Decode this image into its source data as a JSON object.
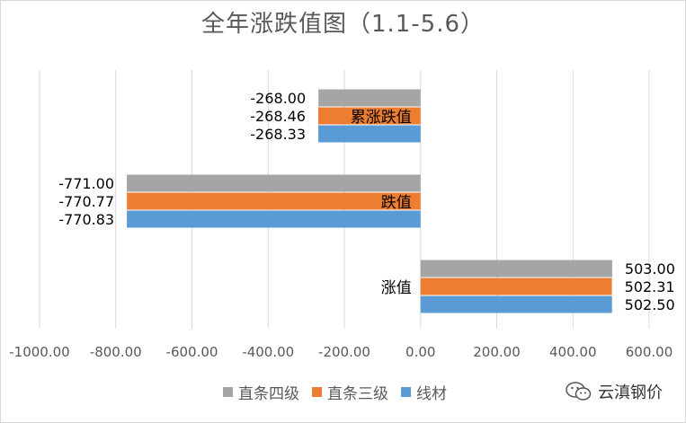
{
  "chart_data": {
    "type": "bar",
    "orientation": "horizontal",
    "title": "全年涨跌值图（1.1-5.6）",
    "categories": [
      "涨值",
      "跌值",
      "累涨跌值"
    ],
    "series": [
      {
        "name": "线材",
        "color": "#5b9bd5",
        "values": [
          502.5,
          -770.83,
          -268.33
        ],
        "labels": [
          "502.50",
          "-770.83",
          "-268.33"
        ]
      },
      {
        "name": "直条三级",
        "color": "#ed7d31",
        "values": [
          502.31,
          -770.77,
          -268.46
        ],
        "labels": [
          "502.31",
          "-770.77",
          "-268.46"
        ]
      },
      {
        "name": "直条四级",
        "color": "#a5a5a5",
        "values": [
          503.0,
          -771.0,
          -268.0
        ],
        "labels": [
          "503.00",
          "-771.00",
          "-268.00"
        ]
      }
    ],
    "xlim": [
      -1000,
      600
    ],
    "xticks": [
      -1000,
      -800,
      -600,
      -400,
      -200,
      0,
      200,
      400,
      600
    ],
    "xtick_labels": [
      "-1000.00",
      "-800.00",
      "-600.00",
      "-400.00",
      "-200.00",
      "0.00",
      "200.00",
      "400.00",
      "600.00"
    ],
    "grid": "vertical",
    "legend_position": "bottom",
    "legend_order": [
      "直条四级",
      "直条三级",
      "线材"
    ]
  },
  "watermark": {
    "text": "云滇钢价",
    "icon": "wechat-icon"
  }
}
